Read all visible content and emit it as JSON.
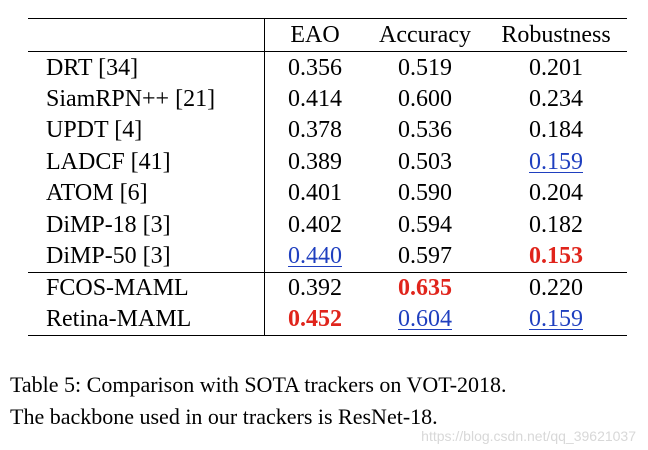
{
  "table": {
    "columns": [
      "",
      "EAO",
      "Accuracy",
      "Robustness"
    ],
    "group1": [
      {
        "name": "DRT [34]",
        "eao": "0.356",
        "acc": "0.519",
        "rob": "0.201",
        "eao_style": "",
        "acc_style": "",
        "rob_style": ""
      },
      {
        "name": "SiamRPN++ [21]",
        "eao": "0.414",
        "acc": "0.600",
        "rob": "0.234",
        "eao_style": "",
        "acc_style": "",
        "rob_style": ""
      },
      {
        "name": "UPDT [4]",
        "eao": "0.378",
        "acc": "0.536",
        "rob": "0.184",
        "eao_style": "",
        "acc_style": "",
        "rob_style": ""
      },
      {
        "name": "LADCF [41]",
        "eao": "0.389",
        "acc": "0.503",
        "rob": "0.159",
        "eao_style": "",
        "acc_style": "",
        "rob_style": "second"
      },
      {
        "name": "ATOM [6]",
        "eao": "0.401",
        "acc": "0.590",
        "rob": "0.204",
        "eao_style": "",
        "acc_style": "",
        "rob_style": ""
      },
      {
        "name": "DiMP-18 [3]",
        "eao": "0.402",
        "acc": "0.594",
        "rob": "0.182",
        "eao_style": "",
        "acc_style": "",
        "rob_style": ""
      },
      {
        "name": "DiMP-50 [3]",
        "eao": "0.440",
        "acc": "0.597",
        "rob": "0.153",
        "eao_style": "second",
        "acc_style": "",
        "rob_style": "best"
      }
    ],
    "group2": [
      {
        "name": "FCOS-MAML",
        "eao": "0.392",
        "acc": "0.635",
        "rob": "0.220",
        "eao_style": "",
        "acc_style": "best",
        "rob_style": ""
      },
      {
        "name": "Retina-MAML",
        "eao": "0.452",
        "acc": "0.604",
        "rob": "0.159",
        "eao_style": "best",
        "acc_style": "second",
        "rob_style": "second"
      }
    ]
  },
  "caption": {
    "line1": "Table 5:  Comparison with SOTA trackers on VOT-2018.",
    "line2": "The backbone used in our trackers is ResNet-18."
  },
  "watermark": "https://blog.csdn.net/qq_39621037",
  "colors": {
    "best": "#e0241b",
    "second": "#1f3fbf"
  }
}
